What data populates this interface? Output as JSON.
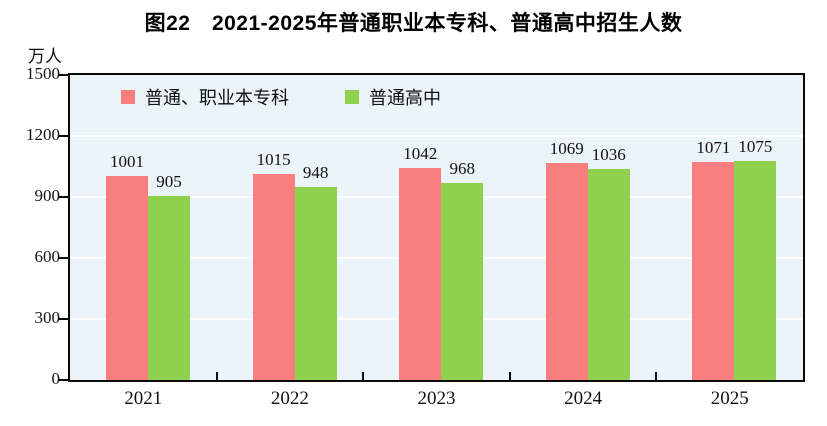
{
  "title": "图22　2021-2025年普通职业本专科、普通高中招生人数",
  "y_axis": {
    "unit": "万人",
    "ticks": [
      0,
      300,
      600,
      900,
      1200,
      1500
    ]
  },
  "legend": {
    "items": [
      {
        "label": "普通、职业本专科",
        "color": "#FA7E7E"
      },
      {
        "label": "普通高中",
        "color": "#8FD04F"
      }
    ]
  },
  "chart_data": {
    "type": "bar",
    "title": "图22　2021-2025年普通职业本专科、普通高中招生人数",
    "categories": [
      "2021",
      "2022",
      "2023",
      "2024",
      "2025"
    ],
    "series": [
      {
        "name": "普通、职业本专科",
        "color": "#FA7E7E",
        "values": [
          1001,
          1015,
          1042,
          1069,
          1071
        ]
      },
      {
        "name": "普通高中",
        "color": "#8FD04F",
        "values": [
          905,
          948,
          968,
          1036,
          1075
        ]
      }
    ],
    "ylabel": "万人",
    "xlabel": "",
    "ylim": [
      0,
      1500
    ],
    "y_ticks": [
      0,
      300,
      600,
      900,
      1200,
      1500
    ],
    "grid": "horizontal",
    "gridline_color": "#FFFFFF",
    "plot_background": "#EBF4F8",
    "legend_position": "top-left-inside",
    "value_labels": true
  },
  "colors": {
    "page_background": "#FFFFFF",
    "plot_background": "#EBF4F8",
    "axis_border": "#0A0A0A",
    "gridline": "#FFFFFF",
    "text": "#111111"
  }
}
